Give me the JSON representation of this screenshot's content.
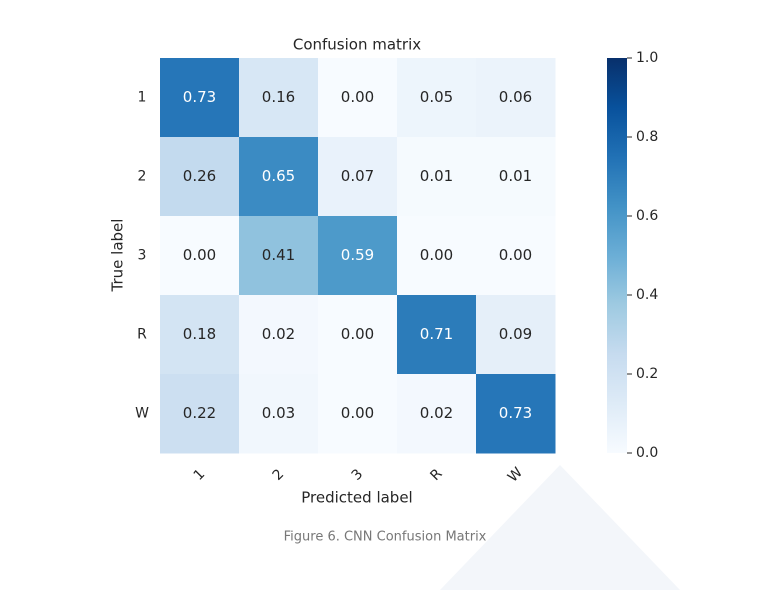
{
  "chart_data": {
    "type": "heatmap",
    "title": "Confusion matrix",
    "x_label": "Predicted label",
    "y_label": "True label",
    "x_categories": [
      "1",
      "2",
      "3",
      "R",
      "W"
    ],
    "y_categories": [
      "1",
      "2",
      "3",
      "R",
      "W"
    ],
    "values": [
      [
        0.73,
        0.16,
        0,
        0.05,
        0.06
      ],
      [
        0.26,
        0.65,
        0.07,
        0.01,
        0.01
      ],
      [
        0,
        0.41,
        0.59,
        0,
        0
      ],
      [
        0.18,
        0.02,
        0,
        0.71,
        0.09
      ],
      [
        0.22,
        0.03,
        0,
        0.02,
        0.73
      ]
    ],
    "value_labels": [
      [
        "0.73",
        "0.16",
        "0.00",
        "0.05",
        "0.06"
      ],
      [
        "0.26",
        "0.65",
        "0.07",
        "0.01",
        "0.01"
      ],
      [
        "0.00",
        "0.41",
        "0.59",
        "0.00",
        "0.00"
      ],
      [
        "0.18",
        "0.02",
        "0.00",
        "0.71",
        "0.09"
      ],
      [
        "0.22",
        "0.03",
        "0.00",
        "0.02",
        "0.73"
      ]
    ],
    "zlim": [
      0,
      1
    ],
    "zticks": [
      {
        "value": 0,
        "label": "0.0"
      },
      0.2,
      0.4,
      0.6,
      0.8,
      {
        "value": 1,
        "label": "1.0"
      }
    ],
    "colormap": [
      "#f7fbff",
      "#deebf7",
      "#c6dbef",
      "#9ecae1",
      "#6baed6",
      "#4292c6",
      "#2171b5",
      "#08519c",
      "#08306b"
    ]
  },
  "caption": "Figure 6. CNN Confusion Matrix"
}
